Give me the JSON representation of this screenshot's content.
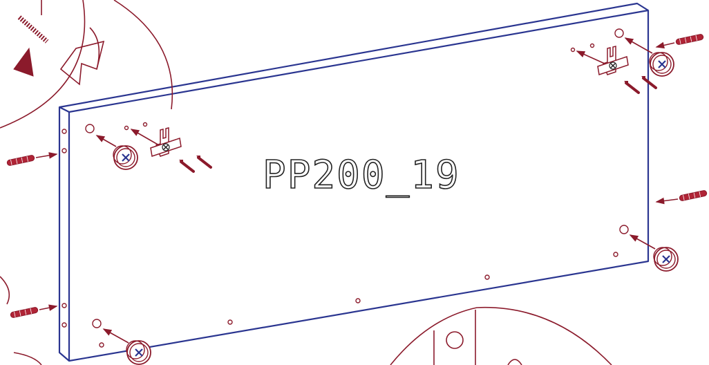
{
  "label": "PP200_19"
}
